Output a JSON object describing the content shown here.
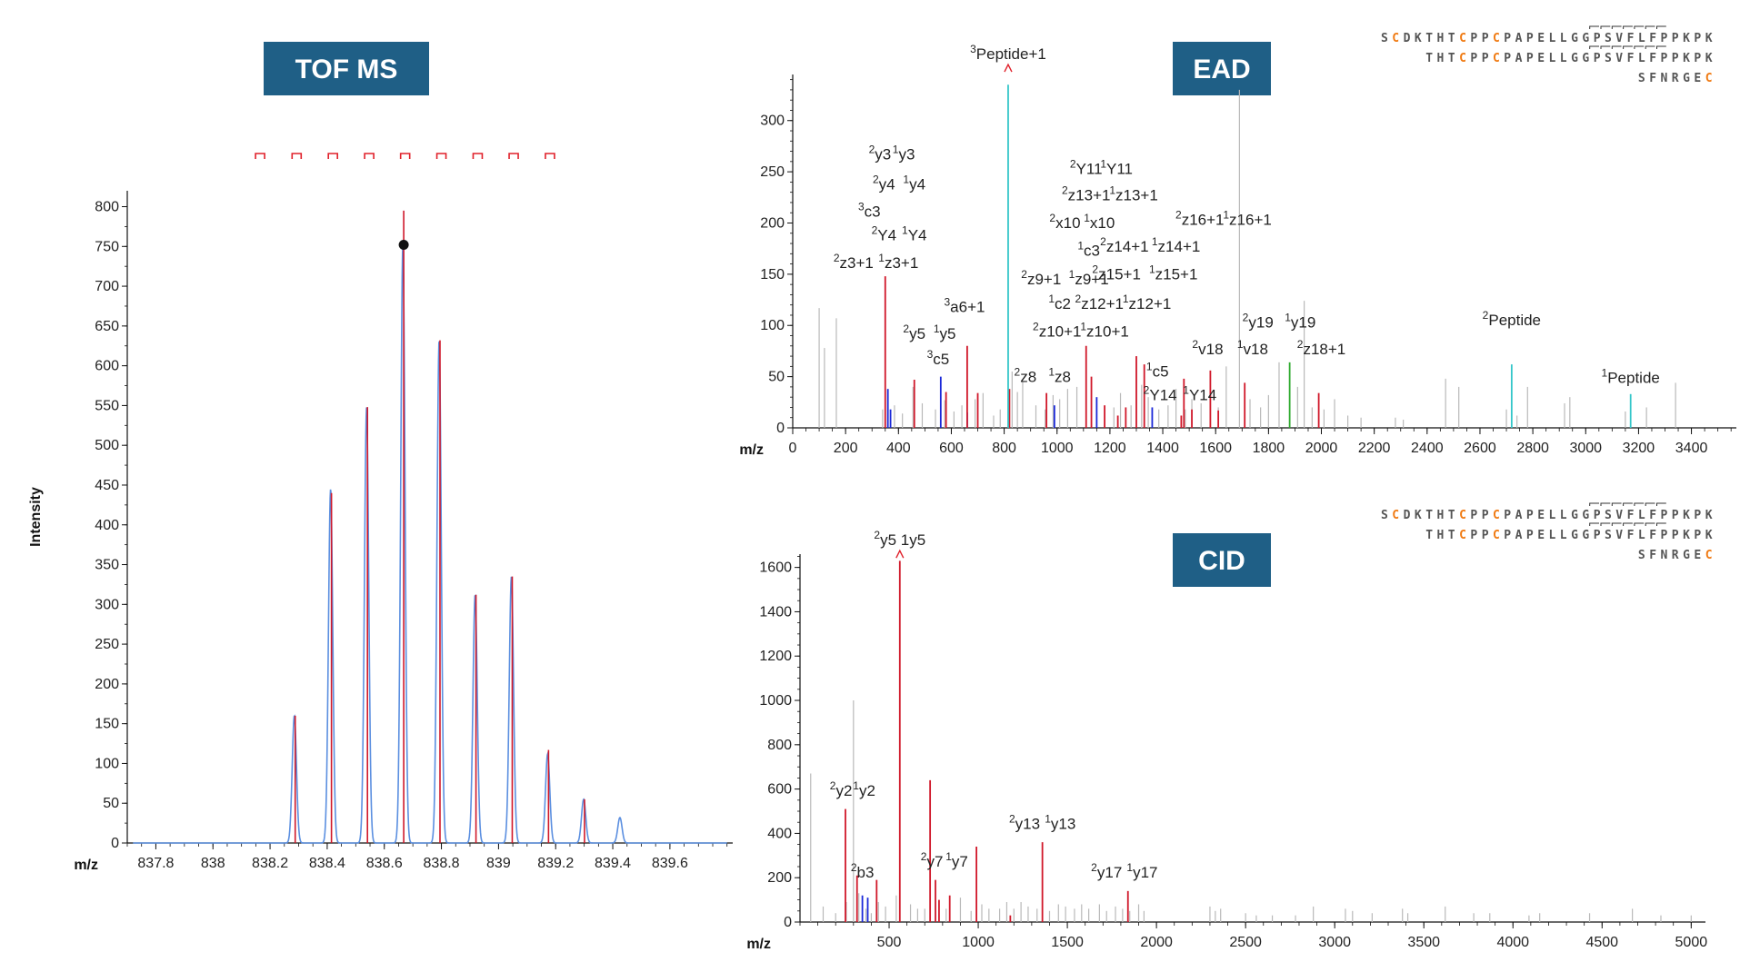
{
  "badges": {
    "tof": "TOF MS",
    "ead": "EAD",
    "cid": "CID",
    "color": "#1f5f86"
  },
  "colors": {
    "isotope_trace": "#5b8fe0",
    "theory_stick": "#d0182a",
    "marker": "#e0202a",
    "cyan": "#34c6c9",
    "blue": "#1a28d8",
    "green": "#2eaa2e",
    "grey": "#b9b9b9",
    "sequence_highlight": "#f07a12"
  },
  "chart_data": [
    {
      "id": "tof",
      "type": "line",
      "title": "TOF MS",
      "xlabel": "m/z",
      "ylabel": "Intensity",
      "xlim": [
        837.7,
        839.82
      ],
      "ylim": [
        0,
        820
      ],
      "xticks": [
        837.8,
        838,
        838.2,
        838.4,
        838.6,
        838.8,
        839,
        839.2,
        839.4,
        839.6
      ],
      "xtick_labels": [
        "837.8",
        "838",
        "838.2",
        "838.4",
        "838.6",
        "838.8",
        "839",
        "839.2",
        "839.4",
        "839.6"
      ],
      "yticks": [
        0,
        50,
        100,
        150,
        200,
        250,
        300,
        350,
        400,
        450,
        500,
        550,
        600,
        650,
        700,
        750,
        800
      ],
      "grid": false,
      "series": [
        {
          "x": [
            838.285,
            838.412,
            838.538,
            838.665,
            838.792,
            838.918,
            839.045,
            839.172,
            839.298,
            839.425
          ],
          "values": [
            160,
            445,
            548,
            752,
            632,
            312,
            335,
            112,
            55,
            32
          ]
        },
        {
          "x": [
            838.288,
            838.415,
            838.541,
            838.668,
            838.795,
            838.921,
            839.048,
            839.175,
            839.301
          ],
          "values": [
            160,
            440,
            548,
            795,
            632,
            312,
            335,
            117,
            55
          ]
        }
      ],
      "markers_x": [
        838.165,
        838.293,
        838.42,
        838.547,
        838.673,
        838.8,
        838.927,
        839.053,
        839.18
      ],
      "selected_point": {
        "x": 838.668,
        "y": 752
      }
    },
    {
      "id": "ead",
      "type": "bar",
      "title": "EAD",
      "xlabel": "m/z",
      "xlim": [
        0,
        3570
      ],
      "ylim": [
        0,
        345
      ],
      "xticks": [
        0,
        200,
        400,
        600,
        800,
        1000,
        1200,
        1400,
        1600,
        1800,
        2000,
        2200,
        2400,
        2600,
        2800,
        3000,
        3200,
        3400
      ],
      "yticks": [
        0,
        50,
        100,
        150,
        200,
        250,
        300
      ],
      "sticks_grey": [
        [
          100,
          117
        ],
        [
          120,
          78
        ],
        [
          165,
          107
        ],
        [
          340,
          18
        ],
        [
          385,
          22
        ],
        [
          415,
          14
        ],
        [
          455,
          40
        ],
        [
          490,
          24
        ],
        [
          540,
          18
        ],
        [
          575,
          27
        ],
        [
          610,
          16
        ],
        [
          640,
          22
        ],
        [
          690,
          28
        ],
        [
          720,
          34
        ],
        [
          760,
          12
        ],
        [
          785,
          18
        ],
        [
          830,
          55
        ],
        [
          850,
          35
        ],
        [
          870,
          45
        ],
        [
          920,
          22
        ],
        [
          955,
          18
        ],
        [
          985,
          32
        ],
        [
          1010,
          28
        ],
        [
          1040,
          38
        ],
        [
          1075,
          40
        ],
        [
          1110,
          24
        ],
        [
          1180,
          12
        ],
        [
          1215,
          20
        ],
        [
          1240,
          34
        ],
        [
          1280,
          22
        ],
        [
          1300,
          64
        ],
        [
          1320,
          42
        ],
        [
          1345,
          30
        ],
        [
          1385,
          18
        ],
        [
          1420,
          22
        ],
        [
          1450,
          38
        ],
        [
          1485,
          18
        ],
        [
          1510,
          28
        ],
        [
          1545,
          24
        ],
        [
          1610,
          20
        ],
        [
          1640,
          60
        ],
        [
          1690,
          330
        ],
        [
          1730,
          28
        ],
        [
          1770,
          20
        ],
        [
          1800,
          32
        ],
        [
          1840,
          64
        ],
        [
          1910,
          40
        ],
        [
          1935,
          124
        ],
        [
          1965,
          20
        ],
        [
          2010,
          18
        ],
        [
          2050,
          28
        ],
        [
          2100,
          12
        ],
        [
          2150,
          10
        ],
        [
          2280,
          10
        ],
        [
          2310,
          8
        ],
        [
          2470,
          48
        ],
        [
          2520,
          40
        ],
        [
          2700,
          18
        ],
        [
          2740,
          12
        ],
        [
          2780,
          40
        ],
        [
          2920,
          24
        ],
        [
          2940,
          30
        ],
        [
          3150,
          16
        ],
        [
          3230,
          20
        ],
        [
          3340,
          44
        ]
      ],
      "sticks_red": [
        [
          350,
          148
        ],
        [
          460,
          47
        ],
        [
          580,
          35
        ],
        [
          660,
          80
        ],
        [
          700,
          34
        ],
        [
          820,
          38
        ],
        [
          960,
          34
        ],
        [
          1110,
          80
        ],
        [
          1130,
          50
        ],
        [
          1180,
          22
        ],
        [
          1230,
          12
        ],
        [
          1260,
          20
        ],
        [
          1300,
          70
        ],
        [
          1330,
          62
        ],
        [
          1470,
          12
        ],
        [
          1480,
          48
        ],
        [
          1510,
          18
        ],
        [
          1580,
          56
        ],
        [
          1610,
          17
        ],
        [
          1710,
          44
        ],
        [
          1990,
          34
        ]
      ],
      "sticks_blue": [
        [
          360,
          38
        ],
        [
          370,
          18
        ],
        [
          560,
          50
        ],
        [
          660,
          15
        ],
        [
          990,
          22
        ],
        [
          1150,
          30
        ],
        [
          1360,
          20
        ]
      ],
      "sticks_cyan": [
        [
          815,
          335
        ],
        [
          2720,
          62
        ],
        [
          3170,
          33
        ]
      ],
      "sticks_green": [
        [
          1880,
          64
        ]
      ],
      "annotations": [
        {
          "x": 815,
          "y": 360,
          "text": "3Peptide+1",
          "arrow": true
        },
        {
          "x": 330,
          "y": 262,
          "text": "2y3"
        },
        {
          "x": 420,
          "y": 262,
          "text": "1y3"
        },
        {
          "x": 345,
          "y": 233,
          "text": "2y4"
        },
        {
          "x": 460,
          "y": 233,
          "text": "1y4"
        },
        {
          "x": 290,
          "y": 206,
          "text": "3c3"
        },
        {
          "x": 345,
          "y": 183,
          "text": "2Y4"
        },
        {
          "x": 460,
          "y": 183,
          "text": "1Y4"
        },
        {
          "x": 230,
          "y": 156,
          "text": "2z3+1"
        },
        {
          "x": 400,
          "y": 156,
          "text": "1z3+1"
        },
        {
          "x": 460,
          "y": 87,
          "text": "2y5"
        },
        {
          "x": 575,
          "y": 87,
          "text": "1y5"
        },
        {
          "x": 650,
          "y": 113,
          "text": "3a6+1"
        },
        {
          "x": 550,
          "y": 62,
          "text": "3c5"
        },
        {
          "x": 1110,
          "y": 248,
          "text": "2Y11"
        },
        {
          "x": 1225,
          "y": 248,
          "text": "1Y11"
        },
        {
          "x": 1110,
          "y": 222,
          "text": "2z13+1"
        },
        {
          "x": 1290,
          "y": 222,
          "text": "1z13+1"
        },
        {
          "x": 1030,
          "y": 195,
          "text": "2x10"
        },
        {
          "x": 1160,
          "y": 195,
          "text": "1x10"
        },
        {
          "x": 1120,
          "y": 168,
          "text": "1c3"
        },
        {
          "x": 1255,
          "y": 172,
          "text": "2z14+1"
        },
        {
          "x": 1450,
          "y": 172,
          "text": "1z14+1"
        },
        {
          "x": 1540,
          "y": 198,
          "text": "2z16+1"
        },
        {
          "x": 1720,
          "y": 198,
          "text": "1z16+1"
        },
        {
          "x": 940,
          "y": 140,
          "text": "2z9+1"
        },
        {
          "x": 1120,
          "y": 140,
          "text": "1z9+1"
        },
        {
          "x": 1225,
          "y": 145,
          "text": "2z15+1"
        },
        {
          "x": 1440,
          "y": 145,
          "text": "1z15+1"
        },
        {
          "x": 1010,
          "y": 116,
          "text": "1c2"
        },
        {
          "x": 1160,
          "y": 116,
          "text": "2z12+1"
        },
        {
          "x": 1340,
          "y": 116,
          "text": "1z12+1"
        },
        {
          "x": 1000,
          "y": 89,
          "text": "2z10+1"
        },
        {
          "x": 1180,
          "y": 89,
          "text": "1z10+1"
        },
        {
          "x": 880,
          "y": 45,
          "text": "2z8"
        },
        {
          "x": 1010,
          "y": 45,
          "text": "1z8"
        },
        {
          "x": 1380,
          "y": 50,
          "text": "1c5"
        },
        {
          "x": 1390,
          "y": 27,
          "text": "2Y14"
        },
        {
          "x": 1540,
          "y": 27,
          "text": "1Y14"
        },
        {
          "x": 1760,
          "y": 98,
          "text": "2y19"
        },
        {
          "x": 1920,
          "y": 98,
          "text": "1y19"
        },
        {
          "x": 1570,
          "y": 72,
          "text": "2v18"
        },
        {
          "x": 1740,
          "y": 72,
          "text": "1v18"
        },
        {
          "x": 2000,
          "y": 72,
          "text": "2z18+1"
        },
        {
          "x": 2720,
          "y": 100,
          "text": "2Peptide"
        },
        {
          "x": 3170,
          "y": 44,
          "text": "1Peptide"
        }
      ]
    },
    {
      "id": "cid",
      "type": "bar",
      "title": "CID",
      "xlabel": "m/z",
      "xlim": [
        0,
        5080
      ],
      "ylim": [
        0,
        1660
      ],
      "xticks": [
        500,
        1000,
        1500,
        2000,
        2500,
        3000,
        3500,
        4000,
        4500,
        5000
      ],
      "yticks": [
        0,
        200,
        400,
        600,
        800,
        1000,
        1200,
        1400,
        1600
      ],
      "sticks_grey": [
        [
          60,
          670
        ],
        [
          130,
          70
        ],
        [
          200,
          40
        ],
        [
          260,
          90
        ],
        [
          300,
          1000
        ],
        [
          330,
          130
        ],
        [
          370,
          60
        ],
        [
          400,
          40
        ],
        [
          440,
          90
        ],
        [
          480,
          70
        ],
        [
          540,
          120
        ],
        [
          620,
          80
        ],
        [
          660,
          60
        ],
        [
          700,
          60
        ],
        [
          760,
          90
        ],
        [
          820,
          60
        ],
        [
          900,
          110
        ],
        [
          960,
          50
        ],
        [
          1020,
          80
        ],
        [
          1060,
          60
        ],
        [
          1120,
          60
        ],
        [
          1160,
          90
        ],
        [
          1200,
          60
        ],
        [
          1240,
          90
        ],
        [
          1280,
          70
        ],
        [
          1330,
          60
        ],
        [
          1400,
          50
        ],
        [
          1450,
          80
        ],
        [
          1490,
          70
        ],
        [
          1540,
          60
        ],
        [
          1580,
          80
        ],
        [
          1620,
          60
        ],
        [
          1680,
          80
        ],
        [
          1720,
          50
        ],
        [
          1770,
          70
        ],
        [
          1810,
          60
        ],
        [
          1850,
          50
        ],
        [
          1900,
          80
        ],
        [
          1930,
          50
        ],
        [
          2300,
          70
        ],
        [
          2330,
          50
        ],
        [
          2360,
          60
        ],
        [
          2500,
          40
        ],
        [
          2560,
          30
        ],
        [
          2650,
          30
        ],
        [
          2780,
          30
        ],
        [
          2880,
          70
        ],
        [
          3060,
          60
        ],
        [
          3100,
          50
        ],
        [
          3210,
          40
        ],
        [
          3380,
          60
        ],
        [
          3410,
          40
        ],
        [
          3620,
          70
        ],
        [
          3780,
          40
        ],
        [
          3870,
          40
        ],
        [
          4090,
          30
        ],
        [
          4150,
          40
        ],
        [
          4430,
          40
        ],
        [
          4670,
          60
        ],
        [
          4830,
          30
        ],
        [
          5000,
          30
        ]
      ],
      "sticks_red": [
        [
          255,
          510
        ],
        [
          320,
          210
        ],
        [
          430,
          190
        ],
        [
          560,
          1630
        ],
        [
          730,
          640
        ],
        [
          760,
          190
        ],
        [
          780,
          100
        ],
        [
          840,
          120
        ],
        [
          990,
          340
        ],
        [
          1180,
          30
        ],
        [
          1360,
          360
        ],
        [
          1840,
          140
        ]
      ],
      "sticks_blue": [
        [
          350,
          120
        ],
        [
          380,
          110
        ]
      ],
      "annotations": [
        {
          "x": 560,
          "y": 1700,
          "text": "2y5 1y5",
          "arrow": true
        },
        {
          "x": 230,
          "y": 570,
          "text": "2y2"
        },
        {
          "x": 360,
          "y": 570,
          "text": "1y2"
        },
        {
          "x": 350,
          "y": 200,
          "text": "2b3"
        },
        {
          "x": 740,
          "y": 250,
          "text": "2y7"
        },
        {
          "x": 880,
          "y": 250,
          "text": "1y7"
        },
        {
          "x": 1260,
          "y": 420,
          "text": "2y13"
        },
        {
          "x": 1460,
          "y": 420,
          "text": "1y13"
        },
        {
          "x": 1720,
          "y": 200,
          "text": "2y17"
        },
        {
          "x": 1920,
          "y": 200,
          "text": "1y17"
        }
      ]
    }
  ],
  "sequences": {
    "ead": [
      "SCDKTHTCPPCPAPELLGGPSVFLFPPKPK",
      "THTCPPCPAPELLGGPSVFLFPPKPK",
      "SFNRGEC"
    ],
    "cid": [
      "SCDKTHTCPPCPAPELLGGPSVFLFPPKPK",
      "THTCPPCPAPELLGGPSVFLFPPKPK",
      "SFNRGEC"
    ]
  }
}
